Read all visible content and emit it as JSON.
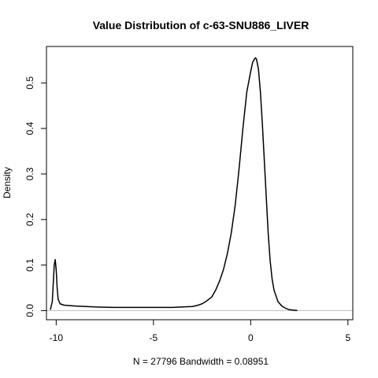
{
  "chart_data": {
    "type": "line",
    "title": "Value Distribution of c-63-SNU886_LIVER",
    "xlabel": "N = 27796   Bandwidth = 0.08951",
    "ylabel": "Density",
    "xlim": [
      -10.5,
      5.25
    ],
    "ylim": [
      -0.02,
      0.58
    ],
    "x_ticks": [
      -10,
      -5,
      0,
      5
    ],
    "x_tick_labels": [
      "-10",
      "-5",
      "0",
      "5"
    ],
    "y_ticks": [
      0.0,
      0.1,
      0.2,
      0.3,
      0.4,
      0.5
    ],
    "y_tick_labels": [
      "0.0",
      "0.1",
      "0.2",
      "0.3",
      "0.4",
      "0.5"
    ],
    "grid": false,
    "reference_line_y": 0,
    "series": [
      {
        "x": [
          -10.3,
          -10.2,
          -10.15,
          -10.1,
          -10.05,
          -10.0,
          -9.95,
          -9.9,
          -9.8,
          -9.6,
          -9.0,
          -8.0,
          -7.0,
          -6.0,
          -5.0,
          -4.0,
          -3.5,
          -3.0,
          -2.7,
          -2.5,
          -2.3,
          -2.0,
          -1.8,
          -1.6,
          -1.4,
          -1.2,
          -1.0,
          -0.8,
          -0.6,
          -0.4,
          -0.2,
          0.0,
          0.1,
          0.2,
          0.25,
          0.3,
          0.4,
          0.5,
          0.6,
          0.7,
          0.8,
          0.9,
          1.0,
          1.1,
          1.2,
          1.4,
          1.6,
          1.8,
          2.0,
          2.2,
          2.4
        ],
        "y": [
          0.002,
          0.02,
          0.06,
          0.1,
          0.112,
          0.09,
          0.05,
          0.025,
          0.015,
          0.012,
          0.01,
          0.008,
          0.007,
          0.007,
          0.007,
          0.007,
          0.008,
          0.009,
          0.012,
          0.015,
          0.02,
          0.03,
          0.045,
          0.065,
          0.09,
          0.125,
          0.17,
          0.23,
          0.31,
          0.4,
          0.48,
          0.525,
          0.545,
          0.553,
          0.555,
          0.552,
          0.53,
          0.48,
          0.41,
          0.33,
          0.25,
          0.17,
          0.11,
          0.07,
          0.045,
          0.02,
          0.01,
          0.005,
          0.002,
          0.001,
          0.0
        ]
      }
    ]
  }
}
